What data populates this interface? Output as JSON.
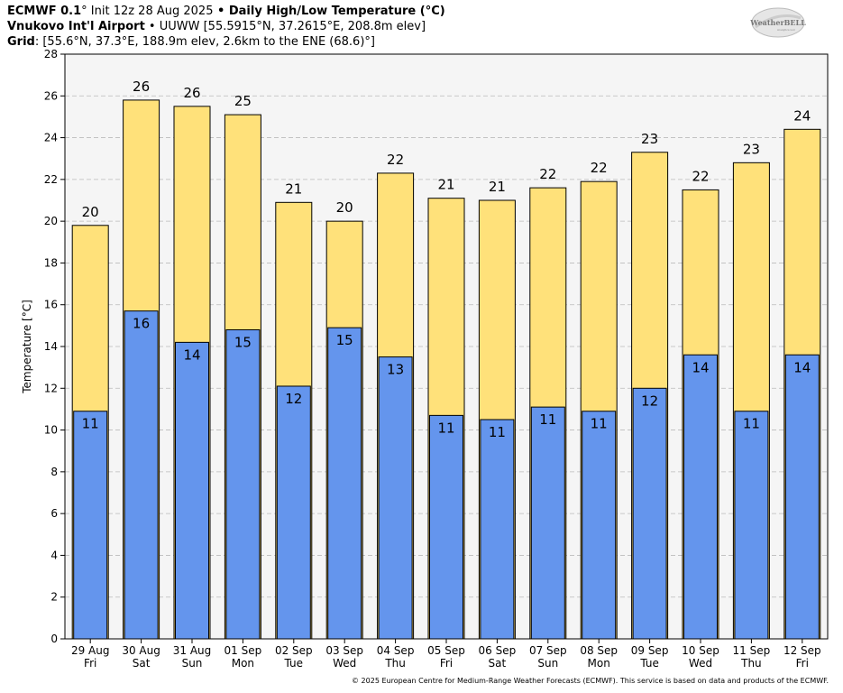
{
  "header": {
    "line1_model": "ECMWF 0.1",
    "line1_deg": "°",
    "line1_init": " Init 12z 28 Aug 2025",
    "line1_sep": " • ",
    "line1_title": "Daily High/Low Temperature (°C)",
    "line2_station": "Vnukovo Int'l Airport",
    "line2_rest": " • UUWW [55.5915°N, 37.2615°E, 208.8m elev]",
    "line3_label": "Grid",
    "line3_rest": ": [55.6°N, 37.3°E, 188.9m elev, 2.6km to the ENE (68.6)°]"
  },
  "logo": {
    "text": "WeatherBELL",
    "sub": "Analytics LLC"
  },
  "footer": "© 2025 European Centre for Medium-Range Weather Forecasts (ECMWF). This service is based on data and products of the ECMWF.",
  "colors": {
    "high_bar": "#FFE17A",
    "low_bar": "#6495ED",
    "plot_bg": "#F5F5F5",
    "grid": "#BBBBBB"
  },
  "chart_data": {
    "type": "bar",
    "ylabel": "Temperature [°C]",
    "ylim": [
      0,
      28
    ],
    "yticks": [
      0,
      2,
      4,
      6,
      8,
      10,
      12,
      14,
      16,
      18,
      20,
      22,
      24,
      26,
      28
    ],
    "grid": true,
    "categories": [
      {
        "date": "29 Aug",
        "day": "Fri"
      },
      {
        "date": "30 Aug",
        "day": "Sat"
      },
      {
        "date": "31 Aug",
        "day": "Sun"
      },
      {
        "date": "01 Sep",
        "day": "Mon"
      },
      {
        "date": "02 Sep",
        "day": "Tue"
      },
      {
        "date": "03 Sep",
        "day": "Wed"
      },
      {
        "date": "04 Sep",
        "day": "Thu"
      },
      {
        "date": "05 Sep",
        "day": "Fri"
      },
      {
        "date": "06 Sep",
        "day": "Sat"
      },
      {
        "date": "07 Sep",
        "day": "Sun"
      },
      {
        "date": "08 Sep",
        "day": "Mon"
      },
      {
        "date": "09 Sep",
        "day": "Tue"
      },
      {
        "date": "10 Sep",
        "day": "Wed"
      },
      {
        "date": "11 Sep",
        "day": "Thu"
      },
      {
        "date": "12 Sep",
        "day": "Fri"
      }
    ],
    "series": [
      {
        "values": [
          19.8,
          25.8,
          25.5,
          25.1,
          20.9,
          20.0,
          22.3,
          21.1,
          21.0,
          21.6,
          21.9,
          23.3,
          21.5,
          22.8,
          24.4
        ],
        "labels": [
          "20",
          "26",
          "26",
          "25",
          "21",
          "20",
          "22",
          "21",
          "21",
          "22",
          "22",
          "23",
          "22",
          "23",
          "24"
        ]
      },
      {
        "values": [
          10.9,
          15.7,
          14.2,
          14.8,
          12.1,
          14.9,
          13.5,
          10.7,
          10.5,
          11.1,
          10.9,
          12.0,
          13.6,
          10.9,
          13.6
        ],
        "labels": [
          "11",
          "16",
          "14",
          "15",
          "12",
          "15",
          "13",
          "11",
          "11",
          "11",
          "11",
          "12",
          "14",
          "11",
          "14"
        ]
      }
    ]
  }
}
